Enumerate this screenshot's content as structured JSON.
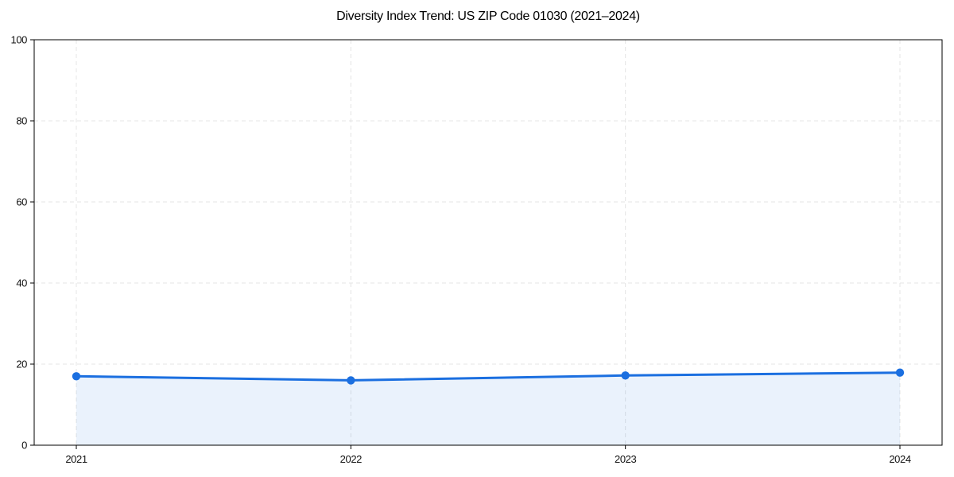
{
  "title": "Diversity Index Trend: US ZIP Code 01030 (2021–2024)",
  "chart_data": {
    "type": "line",
    "title": "Diversity Index Trend: US ZIP Code 01030 (2021–2024)",
    "categories": [
      "2021",
      "2022",
      "2023",
      "2024"
    ],
    "values": [
      17,
      16,
      17.2,
      17.9
    ],
    "series_name": "Diversity Index",
    "xlabel": "",
    "ylabel": "",
    "ylim": [
      0,
      100
    ],
    "yticks": [
      0,
      20,
      40,
      60,
      80,
      100
    ],
    "grid": true,
    "grid_style": "dashed",
    "legend": "none",
    "marker": "circle",
    "area_fill": true,
    "colors": {
      "line": "#1b6fe0",
      "marker": "#1b6fe0",
      "fill": "rgba(27,111,224,0.09)",
      "grid": "#e4e4e4",
      "axis": "#000000",
      "text": "#111111",
      "background": "#ffffff"
    }
  }
}
